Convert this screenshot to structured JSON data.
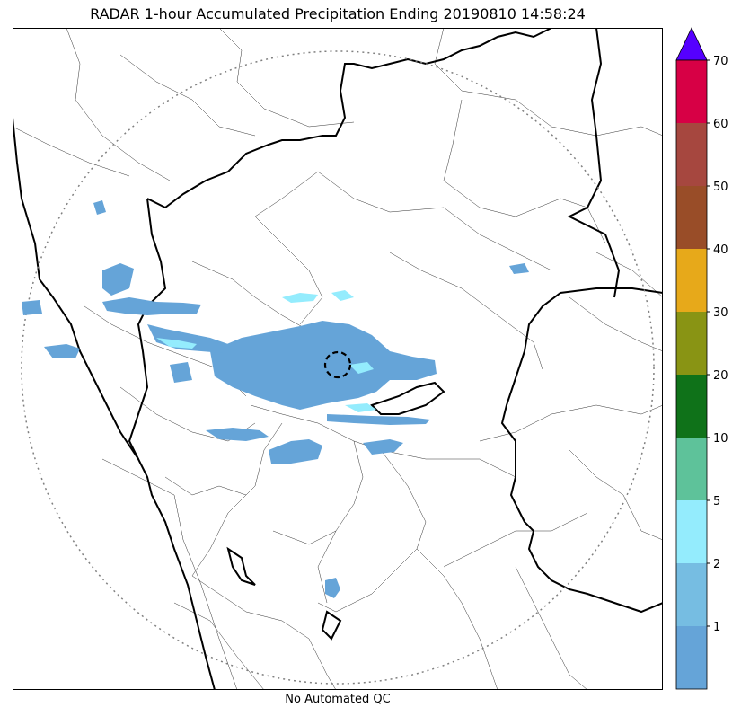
{
  "title": "RADAR 1-hour Accumulated Precipitation Ending 20190810 14:58:24",
  "footer": "No Automated QC",
  "colorbar": {
    "bins": [
      {
        "label": "1",
        "color": "#65a4d8"
      },
      {
        "label": "2",
        "color": "#76bde2"
      },
      {
        "label": "5",
        "color": "#94ecfd"
      },
      {
        "label": "10",
        "color": "#5ec29a"
      },
      {
        "label": "20",
        "color": "#0f7219"
      },
      {
        "label": "30",
        "color": "#899414"
      },
      {
        "label": "40",
        "color": "#e7a91a"
      },
      {
        "label": "50",
        "color": "#994d28"
      },
      {
        "label": "60",
        "color": "#a6473f"
      },
      {
        "label": "70",
        "color": "#d70045"
      }
    ],
    "overflow_color": "#5500ff"
  },
  "map_colors": {
    "rain_light": "#65a4d8",
    "rain_moderate": "#94ecfd",
    "coast": "#000000",
    "range_ring": "#808080"
  }
}
